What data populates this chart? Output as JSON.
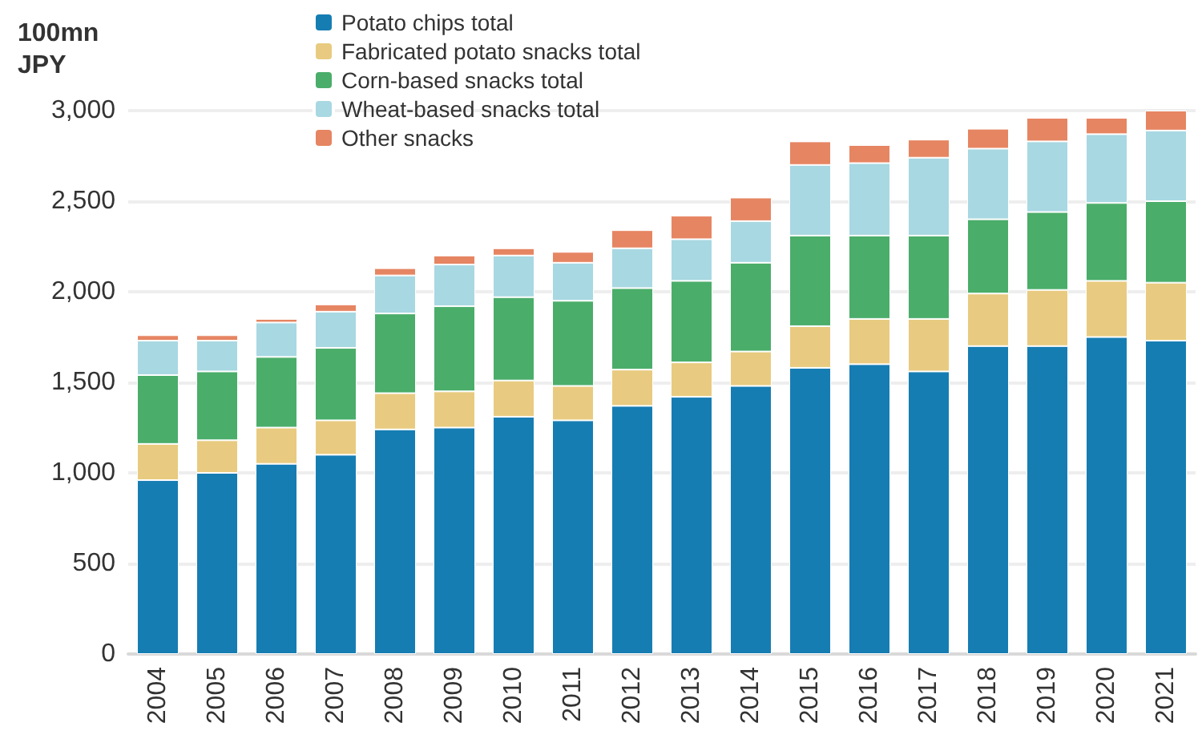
{
  "chart_data": {
    "type": "bar",
    "stacked": true,
    "ylabel": "100mn\nJPY",
    "categories": [
      "2004",
      "2005",
      "2006",
      "2007",
      "2008",
      "2009",
      "2010",
      "2011",
      "2012",
      "2013",
      "2014",
      "2015",
      "2016",
      "2017",
      "2018",
      "2019",
      "2020",
      "2021"
    ],
    "series": [
      {
        "name": "Potato chips total",
        "color": "#167db3",
        "values": [
          960,
          1000,
          1050,
          1100,
          1240,
          1250,
          1310,
          1290,
          1370,
          1420,
          1480,
          1580,
          1600,
          1560,
          1700,
          1700,
          1750,
          1730
        ]
      },
      {
        "name": "Fabricated potato snacks total",
        "color": "#e8cb80",
        "values": [
          200,
          180,
          200,
          190,
          200,
          200,
          200,
          190,
          200,
          190,
          190,
          230,
          250,
          290,
          290,
          310,
          310,
          320
        ]
      },
      {
        "name": "Corn-based snacks total",
        "color": "#4aad6a",
        "values": [
          380,
          380,
          390,
          400,
          440,
          470,
          460,
          470,
          450,
          450,
          490,
          500,
          460,
          460,
          410,
          430,
          430,
          450
        ]
      },
      {
        "name": "Wheat-based snacks total",
        "color": "#a8d8e2",
        "values": [
          190,
          170,
          190,
          200,
          210,
          230,
          230,
          210,
          220,
          230,
          230,
          390,
          400,
          430,
          390,
          390,
          380,
          390
        ]
      },
      {
        "name": "Other snacks",
        "color": "#e68562",
        "values": [
          30,
          30,
          20,
          40,
          40,
          50,
          40,
          60,
          100,
          130,
          130,
          130,
          100,
          100,
          110,
          130,
          90,
          110
        ]
      }
    ],
    "ylim": [
      0,
      3000
    ],
    "yticks": [
      0,
      500,
      {
        "value": 1000,
        "label": "1,000"
      },
      {
        "value": 1500,
        "label": "1,500"
      },
      {
        "value": 2000,
        "label": "2,000"
      },
      {
        "value": 2500,
        "label": "2,500"
      },
      {
        "value": 3000,
        "label": "3,000"
      }
    ],
    "grid": "y",
    "legend": "top left"
  }
}
